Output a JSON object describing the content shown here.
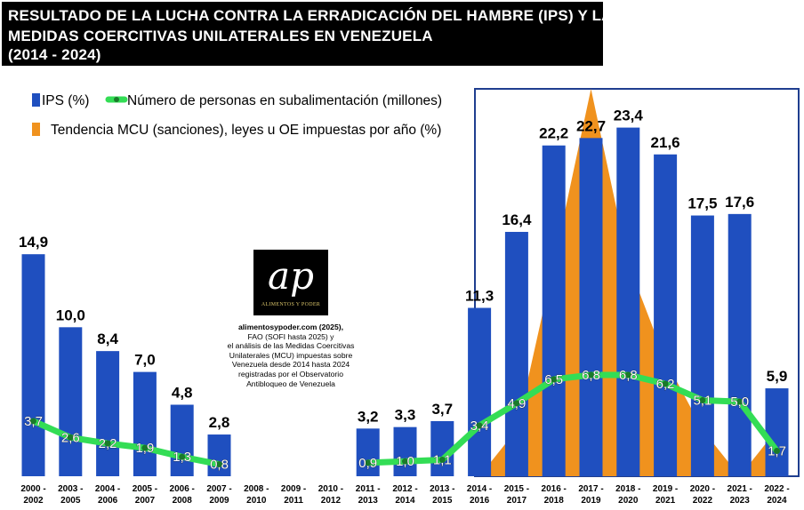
{
  "title": {
    "line1": "RESULTADO DE LA LUCHA CONTRA LA ERRADICACIÓN DEL HAMBRE (IPS) Y LAS",
    "line2": "MEDIDAS COERCITIVAS UNILATERALES EN VENEZUELA",
    "line3": "(2014 - 2024)"
  },
  "logo": {
    "mark": "ap",
    "text": "ALIMENTOS Y PODER"
  },
  "source": {
    "line1": "alimentosypoder.com (2025),",
    "line2": "FAO (SOFI hasta 2025) y",
    "line3": "el análisis  de las  Medidas Coercitivas",
    "line4": "Unilaterales (MCU)  impuestas sobre",
    "line5": "Venezuela desde 2014 hasta 2024",
    "line6": "registradas por el Observatorio",
    "line7": "Antibloqueo de Venezuela"
  },
  "colors": {
    "bar": "#1F4FBF",
    "line": "#33DD55",
    "area": "#F0921E",
    "frame": "#1F3E8F"
  },
  "chart_data": {
    "type": "bar",
    "categories": [
      "2000 - 2002",
      "2003 - 2005",
      "2004 - 2006",
      "2005 - 2007",
      "2006 - 2008",
      "2007 - 2009",
      "2008 - 2010",
      "2009 - 2011",
      "2010 - 2012",
      "2011 - 2013",
      "2012 - 2014",
      "2013 - 2015",
      "2014 - 2016",
      "2015 - 2017",
      "2016 - 2018",
      "2017 - 2019",
      "2018 - 2020",
      "2019 - 2021",
      "2020 - 2022",
      "2021 - 2023",
      "2022 - 2024"
    ],
    "series": [
      {
        "name": "IPS (%)",
        "type": "bar",
        "values": [
          14.9,
          10.0,
          8.4,
          7.0,
          4.8,
          2.8,
          null,
          null,
          null,
          3.2,
          3.3,
          3.7,
          11.3,
          16.4,
          22.2,
          22.7,
          23.4,
          21.6,
          17.5,
          17.6,
          5.9
        ],
        "labels": [
          "14,9",
          "10,0",
          "8,4",
          "7,0",
          "4,8",
          "2,8",
          "",
          "",
          "",
          "3,2",
          "3,3",
          "3,7",
          "11,3",
          "16,4",
          "22,2",
          "22,7",
          "23,4",
          "21,6",
          "17,5",
          "17,6",
          "5,9"
        ]
      },
      {
        "name": "Número de personas en subalimentación (millones)",
        "type": "line",
        "values": [
          3.7,
          2.6,
          2.2,
          1.9,
          1.3,
          0.8,
          null,
          null,
          null,
          0.9,
          1.0,
          1.1,
          3.4,
          4.9,
          6.5,
          6.8,
          6.8,
          6.2,
          5.1,
          5.0,
          1.7
        ],
        "labels": [
          "3,7",
          "2,6",
          "2,2",
          "1,9",
          "1,3",
          "0,8",
          "",
          "",
          "",
          "0,9",
          "1,0",
          "1,1",
          "3,4",
          "4,9",
          "6,5",
          "6,8",
          "6,8",
          "6,2",
          "5,1",
          "5,0",
          "1,7"
        ]
      },
      {
        "name": "Tendencia MCU (sanciones), leyes u OE impuestas por año (%)",
        "type": "area",
        "values": [
          null,
          null,
          null,
          null,
          null,
          null,
          null,
          null,
          null,
          null,
          null,
          null,
          0,
          12,
          55,
          100,
          55,
          30,
          12,
          0,
          12
        ]
      }
    ],
    "ylim_bars": [
      0,
      26
    ],
    "ylim_line": [
      0,
      26
    ],
    "ylim_area": [
      0,
      100
    ],
    "legend": "top-left",
    "grid": false
  }
}
